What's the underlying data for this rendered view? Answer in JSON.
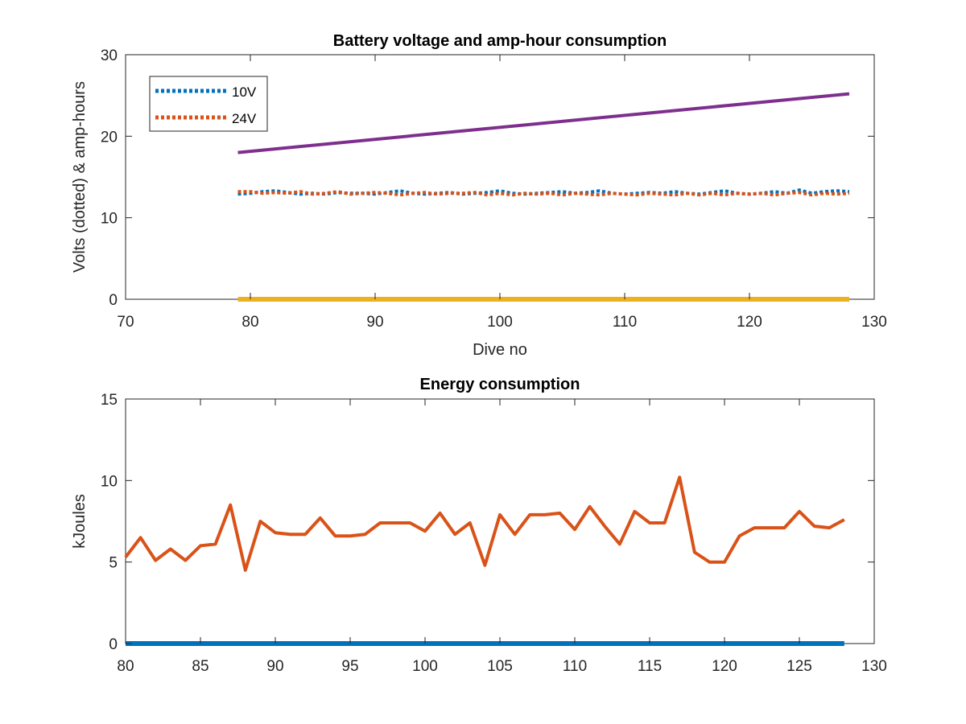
{
  "chart_data": [
    {
      "type": "line",
      "title": "Battery voltage and amp-hour consumption",
      "xlabel": "Dive no",
      "ylabel": "Volts (dotted) & amp-hours",
      "xlim": [
        70,
        130
      ],
      "ylim": [
        0,
        30
      ],
      "xticks": [
        "70",
        "80",
        "90",
        "100",
        "110",
        "120",
        "130"
      ],
      "yticks": [
        "0",
        "10",
        "20",
        "30"
      ],
      "legend_position": "top-left",
      "grid": false,
      "series": [
        {
          "name": "10V",
          "style": "dotted",
          "color": "#0072BD",
          "x": [
            79,
            80,
            81,
            82,
            83,
            84,
            85,
            86,
            87,
            88,
            89,
            90,
            91,
            92,
            93,
            94,
            95,
            96,
            97,
            98,
            99,
            100,
            101,
            102,
            103,
            104,
            105,
            106,
            107,
            108,
            109,
            110,
            111,
            112,
            113,
            114,
            115,
            116,
            117,
            118,
            119,
            120,
            121,
            122,
            123,
            124,
            125,
            126,
            127,
            128
          ],
          "y": [
            12.9,
            13.0,
            13.2,
            13.3,
            13.1,
            12.9,
            13.0,
            12.9,
            13.1,
            13.0,
            13.0,
            12.9,
            13.1,
            13.3,
            13.0,
            12.9,
            13.0,
            13.1,
            12.9,
            13.0,
            13.1,
            13.3,
            13.0,
            12.9,
            13.0,
            13.1,
            13.2,
            13.0,
            13.1,
            13.3,
            13.0,
            12.9,
            13.0,
            13.1,
            13.0,
            13.2,
            13.0,
            12.9,
            13.1,
            13.3,
            13.0,
            12.9,
            13.0,
            13.2,
            13.0,
            13.4,
            13.0,
            13.2,
            13.3,
            13.2
          ]
        },
        {
          "name": "24V",
          "style": "dotted",
          "color": "#D95319",
          "x": [
            79,
            80,
            81,
            82,
            83,
            84,
            85,
            86,
            87,
            88,
            89,
            90,
            91,
            92,
            93,
            94,
            95,
            96,
            97,
            98,
            99,
            100,
            101,
            102,
            103,
            104,
            105,
            106,
            107,
            108,
            109,
            110,
            111,
            112,
            113,
            114,
            115,
            116,
            117,
            118,
            119,
            120,
            121,
            122,
            123,
            124,
            125,
            126,
            127,
            128
          ],
          "y": [
            13.2,
            13.2,
            13.0,
            13.1,
            13.0,
            13.2,
            12.9,
            13.0,
            13.2,
            12.9,
            13.0,
            13.1,
            13.0,
            12.8,
            13.0,
            13.1,
            12.9,
            13.0,
            13.0,
            13.1,
            12.8,
            13.0,
            12.8,
            13.0,
            12.9,
            13.0,
            12.8,
            13.0,
            12.9,
            12.8,
            13.0,
            12.9,
            12.8,
            13.0,
            12.9,
            12.8,
            13.0,
            12.8,
            13.0,
            12.8,
            13.0,
            12.9,
            13.0,
            12.8,
            13.0,
            13.1,
            12.8,
            13.0,
            12.9,
            13.0
          ]
        },
        {
          "style": "solid",
          "color": "#EDB120",
          "x": [
            79,
            128
          ],
          "y": [
            0,
            0
          ]
        },
        {
          "style": "solid",
          "color": "#7E2F8E",
          "x": [
            79,
            128
          ],
          "y": [
            18.0,
            25.2
          ]
        }
      ]
    },
    {
      "type": "line",
      "title": "Energy consumption",
      "xlabel": "",
      "ylabel": "kJoules",
      "xlim": [
        80,
        130
      ],
      "ylim": [
        0,
        15
      ],
      "xticks": [
        "80",
        "85",
        "90",
        "95",
        "100",
        "105",
        "110",
        "115",
        "120",
        "125",
        "130"
      ],
      "yticks": [
        "0",
        "5",
        "10",
        "15"
      ],
      "grid": false,
      "series": [
        {
          "style": "solid",
          "color": "#D95319",
          "x": [
            80,
            81,
            82,
            83,
            84,
            85,
            86,
            87,
            88,
            89,
            90,
            91,
            92,
            93,
            94,
            95,
            96,
            97,
            98,
            99,
            100,
            101,
            102,
            103,
            104,
            105,
            106,
            107,
            108,
            109,
            110,
            111,
            112,
            113,
            114,
            115,
            116,
            117,
            118,
            119,
            120,
            121,
            122,
            123,
            124,
            125,
            126,
            127,
            128
          ],
          "y": [
            5.3,
            6.5,
            5.1,
            5.8,
            5.1,
            6.0,
            6.1,
            8.5,
            4.5,
            7.5,
            6.8,
            6.7,
            6.7,
            7.7,
            6.6,
            6.6,
            6.7,
            7.4,
            7.4,
            7.4,
            6.9,
            8.0,
            6.7,
            7.4,
            4.8,
            7.9,
            6.7,
            7.9,
            7.9,
            8.0,
            7.0,
            8.4,
            7.2,
            6.1,
            8.1,
            7.4,
            7.4,
            10.2,
            5.6,
            5.0,
            5.0,
            6.6,
            7.1,
            7.1,
            7.1,
            8.1,
            7.2,
            7.1,
            7.6
          ]
        },
        {
          "style": "solid",
          "color": "#0072BD",
          "x": [
            80,
            128
          ],
          "y": [
            0,
            0
          ]
        }
      ]
    }
  ]
}
